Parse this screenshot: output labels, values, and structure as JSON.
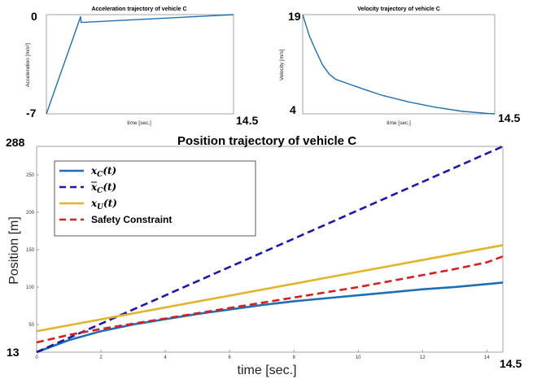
{
  "chart_data": [
    {
      "type": "line",
      "title": "Acceleration trajectory of vehicle C",
      "xlabel": "time [sec.]",
      "ylabel": "Acceleration [m/s²]",
      "xlim": [
        0,
        14.5
      ],
      "ylim": [
        -7,
        0
      ],
      "range_labels": {
        "ymax": "0",
        "ymin": "-7",
        "xmax": "14.5"
      },
      "series": [
        {
          "color": "#1f6fb4",
          "x": [
            0,
            2.65,
            2.7,
            14.5
          ],
          "y": [
            -7,
            -0.15,
            -0.55,
            0
          ]
        }
      ]
    },
    {
      "type": "line",
      "title": "Velocity trajectory of vehicle C",
      "xlabel": "time [sec.]",
      "ylabel": "Velocity [m/s]",
      "xlim": [
        0,
        14.5
      ],
      "ylim": [
        4,
        19
      ],
      "range_labels": {
        "ymax": "19",
        "ymin": "4",
        "xmax": "14.5"
      },
      "series": [
        {
          "color": "#1f6fb4",
          "x": [
            0,
            0.5,
            1,
            1.5,
            2,
            2.5,
            2.8,
            3.5,
            4.5,
            6,
            8,
            10,
            12,
            14,
            14.5
          ],
          "y": [
            19,
            15.8,
            13.5,
            11.4,
            10.0,
            9.2,
            9.0,
            8.5,
            7.8,
            6.8,
            5.8,
            5.0,
            4.4,
            4.05,
            4.0
          ]
        }
      ]
    },
    {
      "type": "line",
      "title": "Position trajectory of vehicle C",
      "xlabel": "time [sec.]",
      "ylabel": "Position [m]",
      "xlim": [
        0,
        14.5
      ],
      "ylim": [
        13,
        288
      ],
      "range_labels": {
        "ymax": "288",
        "ymin": "13",
        "xmax": "14.5"
      },
      "xticks": [
        0,
        2,
        4,
        6,
        8,
        10,
        12,
        14
      ],
      "yticks": [
        50,
        100,
        150,
        200,
        250
      ],
      "legend_position": "top-left",
      "series": [
        {
          "name": "x_C(t)",
          "color": "#1f6fb4",
          "dash": false,
          "x": [
            0,
            1,
            2,
            3,
            4,
            5,
            6,
            7,
            8,
            9,
            10,
            11,
            12,
            13,
            14,
            14.5
          ],
          "y": [
            13,
            29,
            41,
            50,
            57,
            64,
            70,
            76,
            81,
            85,
            89,
            93,
            97,
            100,
            104,
            106
          ]
        },
        {
          "name": "x̄_C(t)",
          "color": "#1a1aa6",
          "dash": true,
          "x": [
            0,
            14.5
          ],
          "y": [
            13,
            288
          ]
        },
        {
          "name": "x_U(t)",
          "color": "#e3b32a",
          "dash": false,
          "x": [
            0,
            14.5
          ],
          "y": [
            41,
            156
          ]
        },
        {
          "name": "Safety Constraint",
          "color": "#d42020",
          "dash": true,
          "x": [
            0,
            1,
            2,
            3,
            4,
            5,
            6,
            7,
            8,
            9,
            10,
            11,
            12,
            13,
            14,
            14.5
          ],
          "y": [
            26,
            36,
            44,
            51,
            58,
            65,
            72,
            79,
            86,
            93,
            100,
            108,
            116,
            124,
            133,
            141
          ]
        }
      ],
      "legend": [
        {
          "main": "x",
          "sub": "C",
          "tail": "(t)",
          "bar": false
        },
        {
          "main": "x",
          "sub": "C",
          "tail": "(t)",
          "bar": true
        },
        {
          "main": "x",
          "sub": "U",
          "tail": "(t)",
          "bar": false
        },
        {
          "text": "Safety Constraint"
        }
      ]
    }
  ]
}
